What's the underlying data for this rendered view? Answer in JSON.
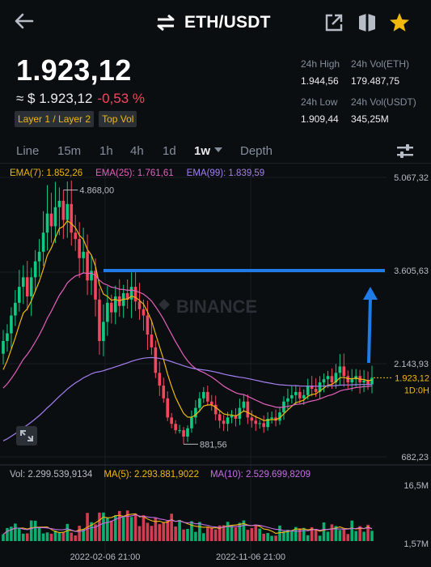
{
  "header": {
    "pair": "ETH/USDT",
    "icons": {
      "back": "arrow-left-icon",
      "swap": "swap-arrows-icon",
      "share": "share-icon",
      "book": "book-icon",
      "favorite": "star-icon"
    }
  },
  "ticker": {
    "last_price": "1.923,12",
    "fiat_price": "≈ $ 1.923,12",
    "change": "-0,53 %",
    "tags": [
      "Layer 1 / Layer 2",
      "Top Vol"
    ],
    "high_label": "24h High",
    "high": "1.944,56",
    "vol_base_label": "24h Vol(ETH)",
    "vol_base": "179.487,75",
    "low_label": "24h Low",
    "low": "1.909,44",
    "vol_quote_label": "24h Vol(USDT)",
    "vol_quote": "345,25M"
  },
  "timeframes": [
    "Line",
    "15m",
    "1h",
    "4h",
    "1d",
    "1w",
    "Depth"
  ],
  "active_timeframe": "1w",
  "chart_legend": {
    "ema7": "EMA(7): 1.852,26",
    "ema25": "EMA(25): 1.761,61",
    "ema99": "EMA(99): 1.839,59"
  },
  "volume_legend": {
    "vol": "Vol: 2.299.539,9134",
    "ma5": "MA(5): 2.293.881,9022",
    "ma10": "MA(10): 2.529.699,8209"
  },
  "chart_data": {
    "type": "candlestick",
    "price_axis_labels": [
      "5.067,32",
      "3.605,63",
      "2.143,93",
      "682,23"
    ],
    "price_ticks": [
      5067.32,
      3605.63,
      2143.93,
      682.23
    ],
    "current_price_label": "1.923,12",
    "current_price": 1923.12,
    "countdown_label": "1D:0H",
    "high_marker_label": "4.868,00",
    "high_marker": 4868.0,
    "low_marker_label": "881,56",
    "low_marker": 881.56,
    "volume_axis_labels": [
      "16,5M",
      "1,57M"
    ],
    "x_axis_labels": [
      "2022-02-06 21:00",
      "2022-11-06 21:00"
    ],
    "watermark": "BINANCE",
    "annotation_level": 3605.63,
    "closes": [
      2500,
      2620,
      2900,
      3100,
      3350,
      3500,
      3200,
      3500,
      3750,
      3900,
      4200,
      4500,
      4300,
      4600,
      4700,
      4400,
      4650,
      4200,
      4100,
      3800,
      3900,
      3450,
      3600,
      3150,
      2500,
      2800,
      3100,
      2950,
      3200,
      3050,
      3250,
      3150,
      3350,
      3120,
      3000,
      2900,
      2600,
      2400,
      2000,
      1800,
      1600,
      1300,
      1200,
      1100,
      1100,
      1000,
      1130,
      1300,
      1450,
      1600,
      1700,
      1550,
      1500,
      1350,
      1250,
      1200,
      1300,
      1330,
      1280,
      1450,
      1550,
      1300,
      1250,
      1200,
      1210,
      1150,
      1280,
      1300,
      1250,
      1380,
      1550,
      1600,
      1650,
      1700,
      1600,
      1650,
      1800,
      1750,
      1700,
      1850,
      1900,
      1950,
      1850,
      2000,
      2100,
      1950,
      1850,
      1900,
      1950,
      1850,
      1880,
      1820,
      1923
    ],
    "volume_range": [
      1570000,
      16500000
    ]
  }
}
